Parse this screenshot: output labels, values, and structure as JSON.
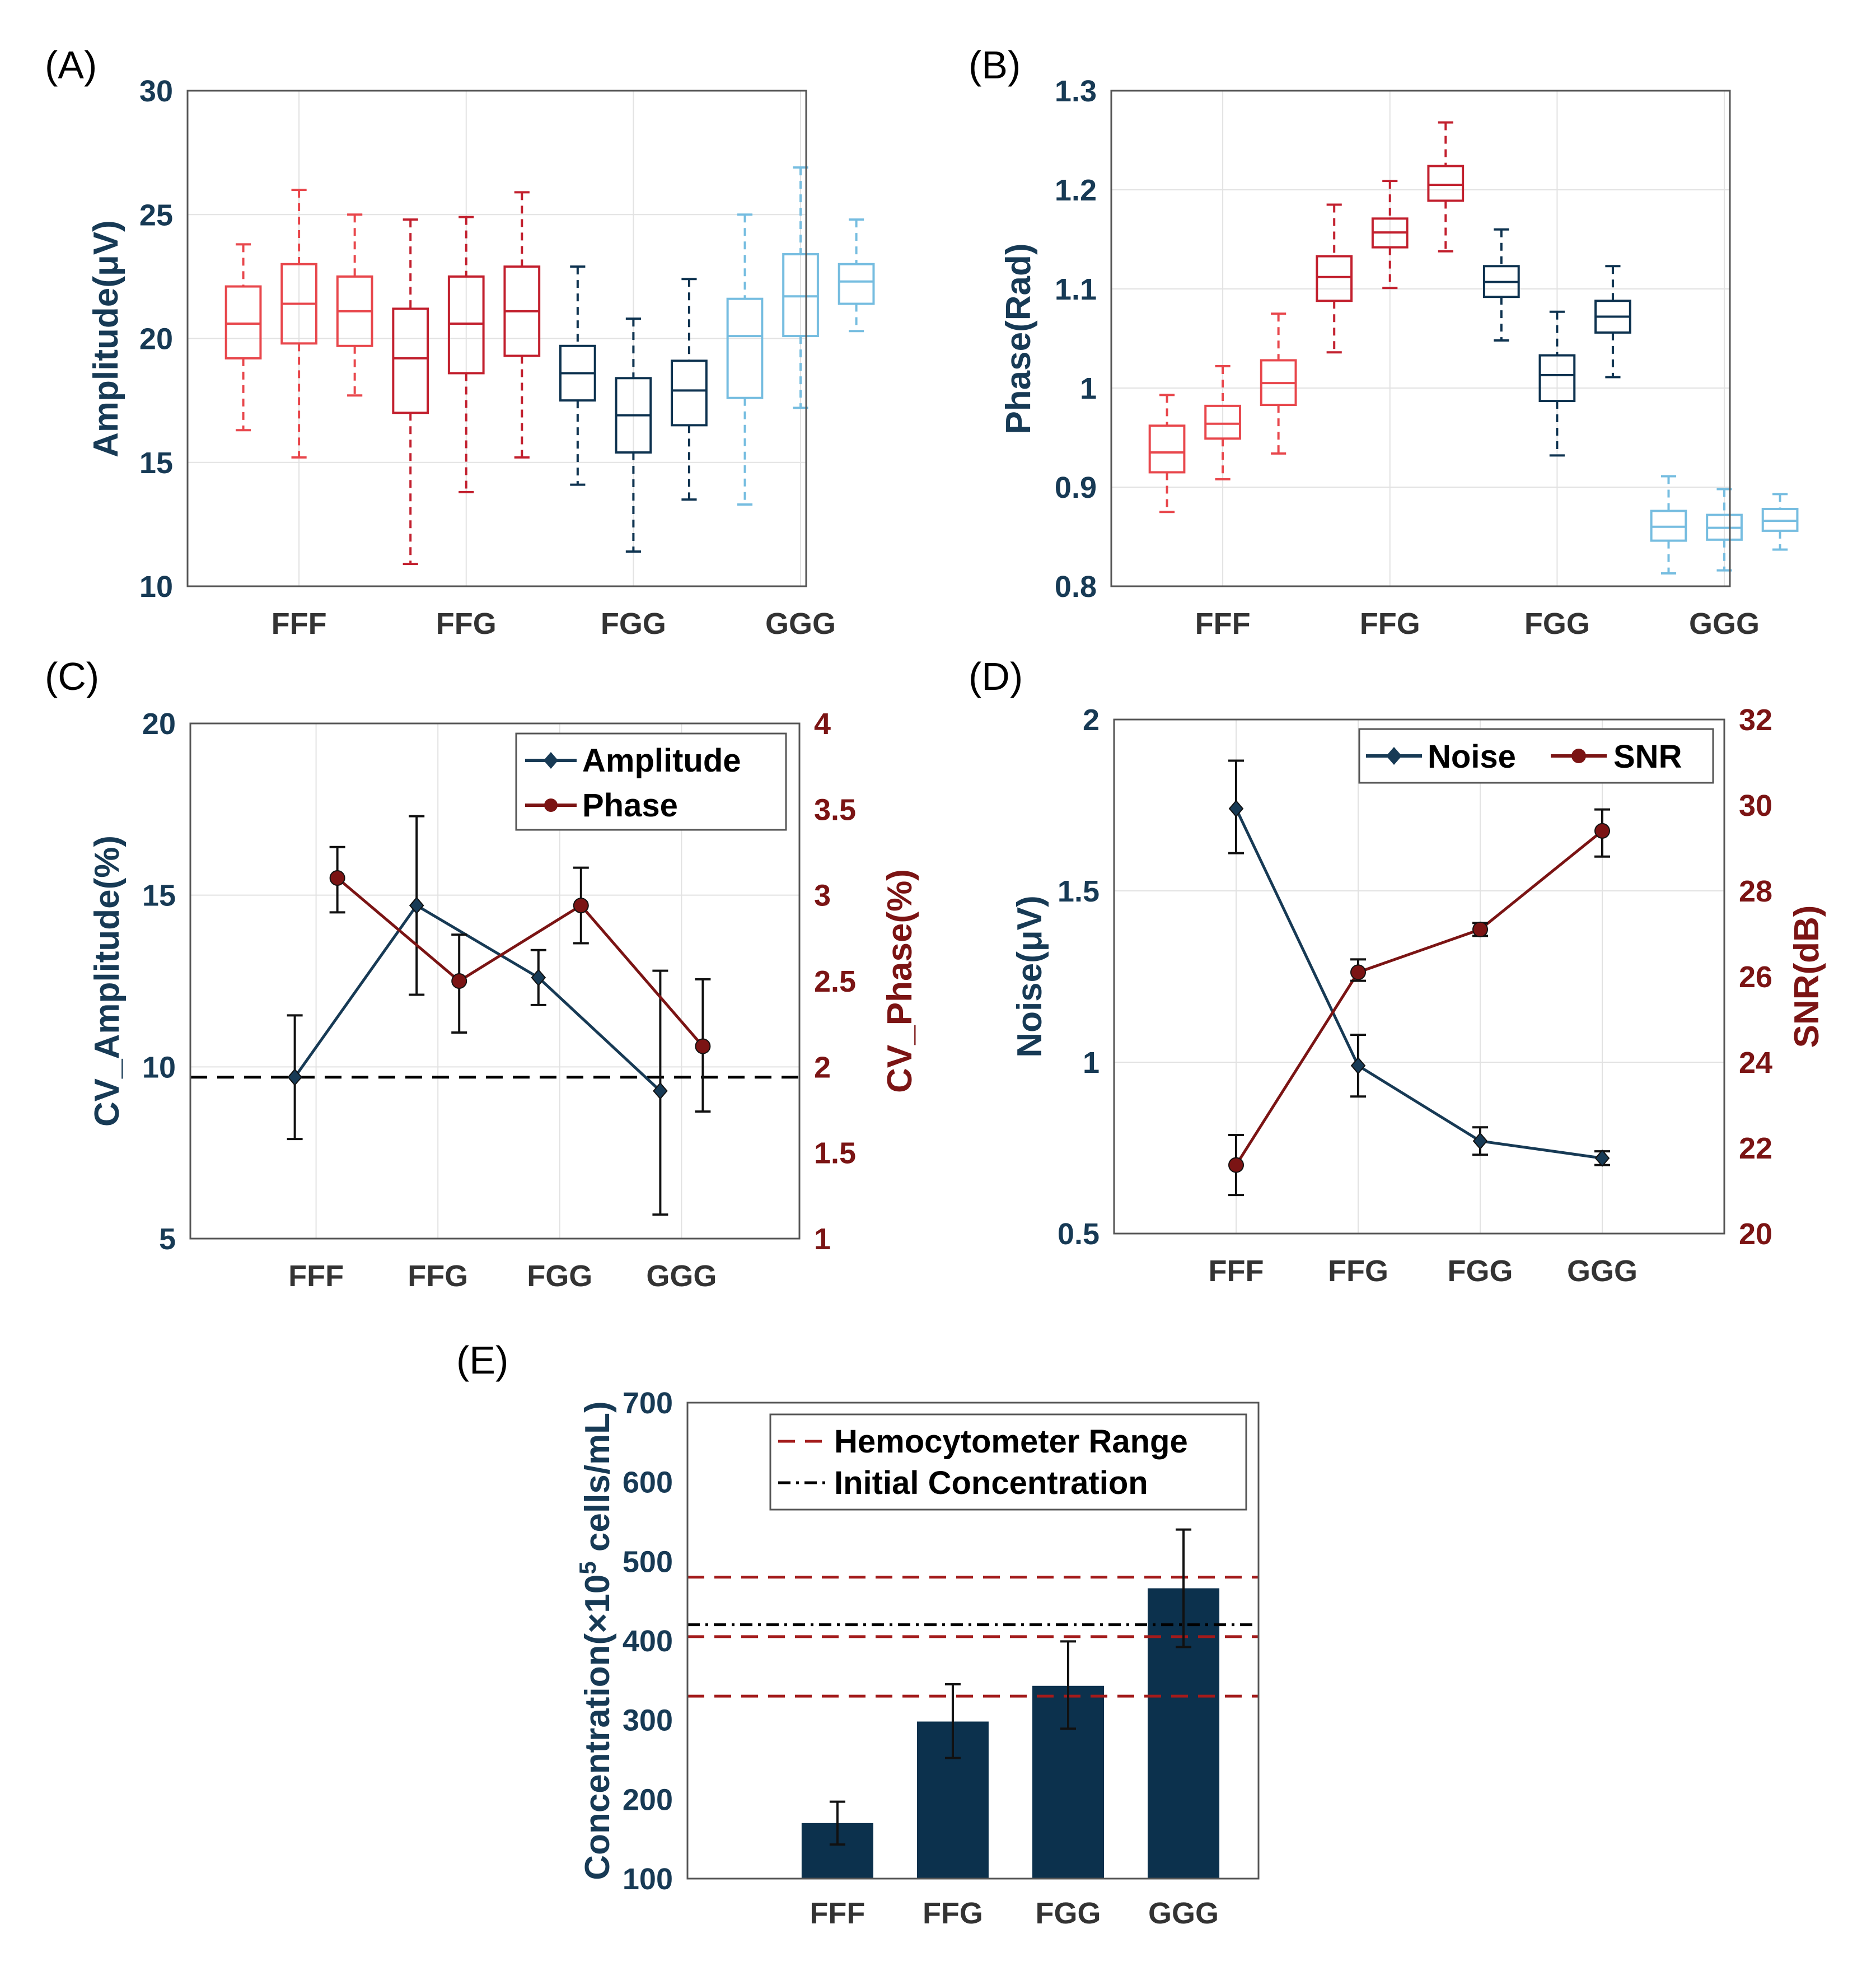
{
  "colors": {
    "fff": "#e8474c",
    "ffg": "#c2202e",
    "fgg": "#0e3350",
    "ggg": "#76bde0",
    "navy": "#173a55",
    "darkred": "#7b1414",
    "black": "#000000",
    "bar": "#0c314d",
    "dashred": "#a31b1b",
    "grid": "#e2e2e2"
  },
  "chart_data": [
    {
      "id": "A",
      "type": "box",
      "panel_label": "(A)",
      "ylabel": "Amplitude(μV)",
      "ylim": [
        10,
        30
      ],
      "yticks": [
        10,
        15,
        20,
        25,
        30
      ],
      "categories": [
        "FFF",
        "FFG",
        "FGG",
        "GGG"
      ],
      "boxes": [
        {
          "group": "FFF",
          "min": 16.3,
          "q1": 19.2,
          "median": 20.6,
          "q3": 22.1,
          "max": 23.8
        },
        {
          "group": "FFF",
          "min": 15.2,
          "q1": 19.8,
          "median": 21.4,
          "q3": 23.0,
          "max": 26.0
        },
        {
          "group": "FFF",
          "min": 17.7,
          "q1": 19.7,
          "median": 21.1,
          "q3": 22.5,
          "max": 25.0
        },
        {
          "group": "FFG",
          "min": 10.9,
          "q1": 17.0,
          "median": 19.2,
          "q3": 21.2,
          "max": 24.8
        },
        {
          "group": "FFG",
          "min": 13.8,
          "q1": 18.6,
          "median": 20.6,
          "q3": 22.5,
          "max": 24.9
        },
        {
          "group": "FFG",
          "min": 15.2,
          "q1": 19.3,
          "median": 21.1,
          "q3": 22.9,
          "max": 25.9
        },
        {
          "group": "FGG",
          "min": 14.1,
          "q1": 17.5,
          "median": 18.6,
          "q3": 19.7,
          "max": 22.9
        },
        {
          "group": "FGG",
          "min": 11.4,
          "q1": 15.4,
          "median": 16.9,
          "q3": 18.4,
          "max": 20.8
        },
        {
          "group": "FGG",
          "min": 13.5,
          "q1": 16.5,
          "median": 17.9,
          "q3": 19.1,
          "max": 22.4
        },
        {
          "group": "GGG",
          "min": 13.3,
          "q1": 17.6,
          "median": 20.1,
          "q3": 21.6,
          "max": 25.0
        },
        {
          "group": "GGG",
          "min": 17.2,
          "q1": 20.1,
          "median": 21.7,
          "q3": 23.4,
          "max": 26.9
        },
        {
          "group": "GGG",
          "min": 20.3,
          "q1": 21.4,
          "median": 22.3,
          "q3": 23.0,
          "max": 24.8
        }
      ]
    },
    {
      "id": "B",
      "type": "box",
      "panel_label": "(B)",
      "ylabel": "Phase(Rad)",
      "ylim": [
        0.8,
        1.3
      ],
      "yticks": [
        0.8,
        0.9,
        1.0,
        1.1,
        1.2,
        1.3
      ],
      "ytick_labels": [
        "0.8",
        "0.9",
        "1",
        "1.1",
        "1.2",
        "1.3"
      ],
      "categories": [
        "FFF",
        "FFG",
        "FGG",
        "GGG"
      ],
      "boxes": [
        {
          "group": "FFF",
          "min": 0.875,
          "q1": 0.915,
          "median": 0.935,
          "q3": 0.962,
          "max": 0.993
        },
        {
          "group": "FFF",
          "min": 0.908,
          "q1": 0.949,
          "median": 0.964,
          "q3": 0.982,
          "max": 1.022
        },
        {
          "group": "FFF",
          "min": 0.934,
          "q1": 0.983,
          "median": 1.005,
          "q3": 1.028,
          "max": 1.075
        },
        {
          "group": "FFG",
          "min": 1.036,
          "q1": 1.088,
          "median": 1.112,
          "q3": 1.133,
          "max": 1.185
        },
        {
          "group": "FFG",
          "min": 1.101,
          "q1": 1.142,
          "median": 1.157,
          "q3": 1.171,
          "max": 1.209
        },
        {
          "group": "FFG",
          "min": 1.138,
          "q1": 1.189,
          "median": 1.205,
          "q3": 1.224,
          "max": 1.268
        },
        {
          "group": "FGG",
          "min": 1.048,
          "q1": 1.092,
          "median": 1.107,
          "q3": 1.123,
          "max": 1.16
        },
        {
          "group": "FGG",
          "min": 0.932,
          "q1": 0.987,
          "median": 1.013,
          "q3": 1.033,
          "max": 1.077
        },
        {
          "group": "FGG",
          "min": 1.011,
          "q1": 1.056,
          "median": 1.072,
          "q3": 1.088,
          "max": 1.123
        },
        {
          "group": "GGG",
          "min": 0.813,
          "q1": 0.846,
          "median": 0.86,
          "q3": 0.876,
          "max": 0.911
        },
        {
          "group": "GGG",
          "min": 0.816,
          "q1": 0.847,
          "median": 0.859,
          "q3": 0.872,
          "max": 0.898
        },
        {
          "group": "GGG",
          "min": 0.837,
          "q1": 0.856,
          "median": 0.866,
          "q3": 0.878,
          "max": 0.893
        }
      ]
    },
    {
      "id": "C",
      "type": "line",
      "panel_label": "(C)",
      "ylabel": "CV_Amplitude(%)",
      "ylabel_right": "CV_Phase(%)",
      "ylim": [
        5,
        20
      ],
      "yticks": [
        5,
        10,
        15,
        20
      ],
      "ylim_right": [
        1,
        4
      ],
      "yticks_right": [
        1,
        1.5,
        2,
        2.5,
        3,
        3.5,
        4
      ],
      "ytick_labels_right": [
        "1",
        "1.5",
        "2",
        "2.5",
        "3",
        "3.5",
        "4"
      ],
      "categories": [
        "FFF",
        "FFG",
        "FGG",
        "GGG"
      ],
      "reference_line": 9.7,
      "series": [
        {
          "name": "Amplitude",
          "axis": "left",
          "marker": "diamond",
          "values": [
            9.7,
            14.7,
            12.6,
            9.3
          ],
          "err_low": [
            7.9,
            12.1,
            11.8,
            5.7
          ],
          "err_high": [
            11.5,
            17.3,
            13.4,
            12.8
          ]
        },
        {
          "name": "Phase",
          "axis": "right",
          "marker": "circle",
          "values": [
            3.1,
            2.5,
            2.94,
            2.12
          ],
          "err_low": [
            2.9,
            2.2,
            2.72,
            1.74
          ],
          "err_high": [
            3.28,
            2.77,
            3.16,
            2.51
          ]
        }
      ],
      "legend": [
        "Amplitude",
        "Phase"
      ]
    },
    {
      "id": "D",
      "type": "line",
      "panel_label": "(D)",
      "ylabel": "Noise(μV)",
      "ylabel_right": "SNR(dB)",
      "ylim": [
        0.5,
        2
      ],
      "yticks": [
        0.5,
        1,
        1.5,
        2
      ],
      "ytick_labels": [
        "0.5",
        "1",
        "1.5",
        "2"
      ],
      "ylim_right": [
        20,
        32
      ],
      "yticks_right": [
        20,
        22,
        24,
        26,
        28,
        30,
        32
      ],
      "categories": [
        "FFF",
        "FFG",
        "FGG",
        "GGG"
      ],
      "series": [
        {
          "name": "Noise",
          "axis": "left",
          "marker": "diamond",
          "values": [
            1.74,
            0.99,
            0.77,
            0.72
          ],
          "err_low": [
            1.61,
            0.9,
            0.73,
            0.7
          ],
          "err_high": [
            1.88,
            1.08,
            0.81,
            0.74
          ]
        },
        {
          "name": "SNR",
          "axis": "right",
          "marker": "circle",
          "values": [
            21.6,
            26.1,
            27.1,
            29.4
          ],
          "err_low": [
            20.9,
            25.9,
            26.95,
            28.8
          ],
          "err_high": [
            22.3,
            26.4,
            27.25,
            29.9
          ]
        }
      ],
      "legend": [
        "Noise",
        "SNR"
      ]
    },
    {
      "id": "E",
      "type": "bar",
      "panel_label": "(E)",
      "ylabel_prefix": "Concentration(×10",
      "ylabel_sup": "5",
      "ylabel_suffix": " cells/mL)",
      "ylim": [
        100,
        700
      ],
      "yticks": [
        100,
        200,
        300,
        400,
        500,
        600,
        700
      ],
      "categories": [
        "FFF",
        "FFG",
        "FGG",
        "GGG"
      ],
      "values": [
        170,
        298,
        343,
        466
      ],
      "err_low": [
        143,
        252,
        289,
        392
      ],
      "err_high": [
        197,
        345,
        399,
        540
      ],
      "hlines": [
        {
          "name": "Hemocytometer Range",
          "style": "dashed",
          "values": [
            480,
            405,
            330
          ]
        },
        {
          "name": "Initial Concentration",
          "style": "dashdot",
          "values": [
            420
          ]
        }
      ],
      "legend": [
        "Hemocytometer Range",
        "Initial Concentration"
      ]
    }
  ]
}
